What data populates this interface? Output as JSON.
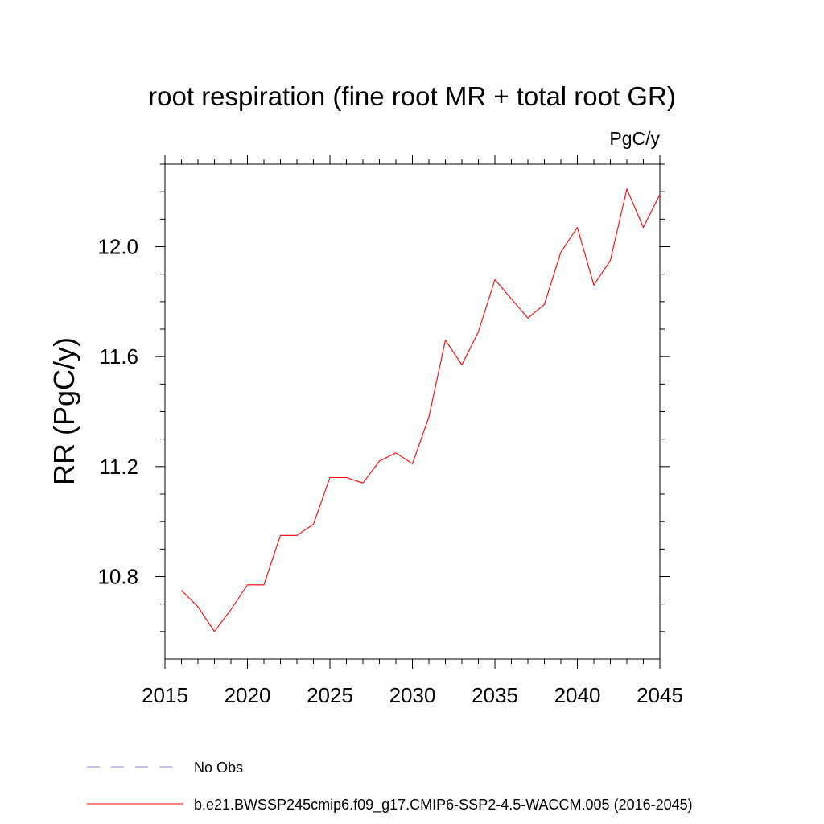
{
  "chart_data": {
    "type": "line",
    "title": "root respiration (fine root MR + total root GR)",
    "units_label": "PgC/y",
    "ylabel": "RR  (PgC/y)",
    "xlabel": "",
    "xlim": [
      2015,
      2045
    ],
    "ylim": [
      10.5,
      12.3
    ],
    "x_ticks": [
      2015,
      2020,
      2025,
      2030,
      2035,
      2040,
      2045
    ],
    "y_ticks": [
      10.8,
      11.2,
      11.6,
      12.0
    ],
    "grid": false,
    "colors": {
      "model": "#ff0000",
      "obs": "#8a7fc8",
      "axis": "#000000"
    },
    "series": [
      {
        "name": "b.e21.BWSSP245cmip6.f09_g17.CMIP6-SSP2-4.5-WACCM.005 (2016-2045)",
        "color": "#ff0000",
        "style": "solid",
        "x": [
          2016,
          2017,
          2018,
          2019,
          2020,
          2021,
          2022,
          2023,
          2024,
          2025,
          2026,
          2027,
          2028,
          2029,
          2030,
          2031,
          2032,
          2033,
          2034,
          2035,
          2036,
          2037,
          2038,
          2039,
          2040,
          2041,
          2042,
          2043,
          2044,
          2045
        ],
        "values": [
          10.75,
          10.69,
          10.6,
          10.68,
          10.77,
          10.77,
          10.95,
          10.95,
          10.99,
          11.16,
          11.16,
          11.14,
          11.22,
          11.25,
          11.21,
          11.38,
          11.66,
          11.57,
          11.69,
          11.88,
          11.81,
          11.74,
          11.79,
          11.98,
          12.07,
          11.86,
          11.95,
          12.21,
          12.07,
          12.19
        ]
      }
    ],
    "legend": [
      {
        "label": "No Obs",
        "color": "#8a7fc8",
        "style": "dashed"
      },
      {
        "label": "b.e21.BWSSP245cmip6.f09_g17.CMIP6-SSP2-4.5-WACCM.005 (2016-2045)",
        "color": "#ff0000",
        "style": "solid"
      }
    ],
    "legend_position": "bottom-left"
  }
}
